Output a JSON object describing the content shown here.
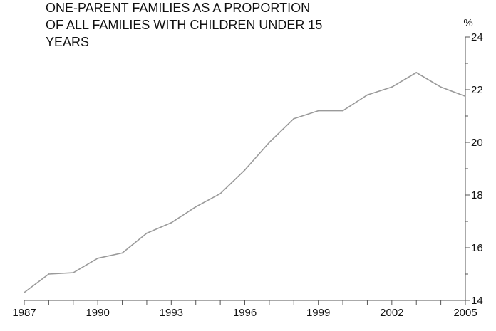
{
  "chart_data": {
    "type": "line",
    "title_lines": [
      "ONE-PARENT FAMILIES AS A PROPORTION",
      "OF ALL FAMILIES WITH CHILDREN UNDER 15",
      "YEARS"
    ],
    "y_unit": "%",
    "x": [
      1987,
      1988,
      1989,
      1990,
      1991,
      1992,
      1993,
      1994,
      1995,
      1996,
      1997,
      1998,
      1999,
      2000,
      2001,
      2002,
      2003,
      2004,
      2005
    ],
    "series": [
      {
        "values": [
          14.3,
          15.0,
          15.05,
          15.6,
          15.8,
          16.55,
          16.95,
          17.55,
          18.05,
          18.95,
          20.0,
          20.9,
          21.2,
          21.2,
          21.8,
          22.1,
          22.65,
          22.1,
          21.75
        ]
      }
    ],
    "xlim": [
      1987,
      2005
    ],
    "ylim": [
      14,
      24
    ],
    "x_ticks": [
      "1987",
      "1990",
      "1993",
      "1996",
      "1999",
      "2002",
      "2005"
    ],
    "y_ticks": [
      "14",
      "16",
      "18",
      "20",
      "22",
      "24"
    ],
    "y_axis_position": "right",
    "grid": false,
    "colors": {
      "line": "#9a9a9a",
      "axis": "#555555",
      "text": "#111111"
    }
  }
}
